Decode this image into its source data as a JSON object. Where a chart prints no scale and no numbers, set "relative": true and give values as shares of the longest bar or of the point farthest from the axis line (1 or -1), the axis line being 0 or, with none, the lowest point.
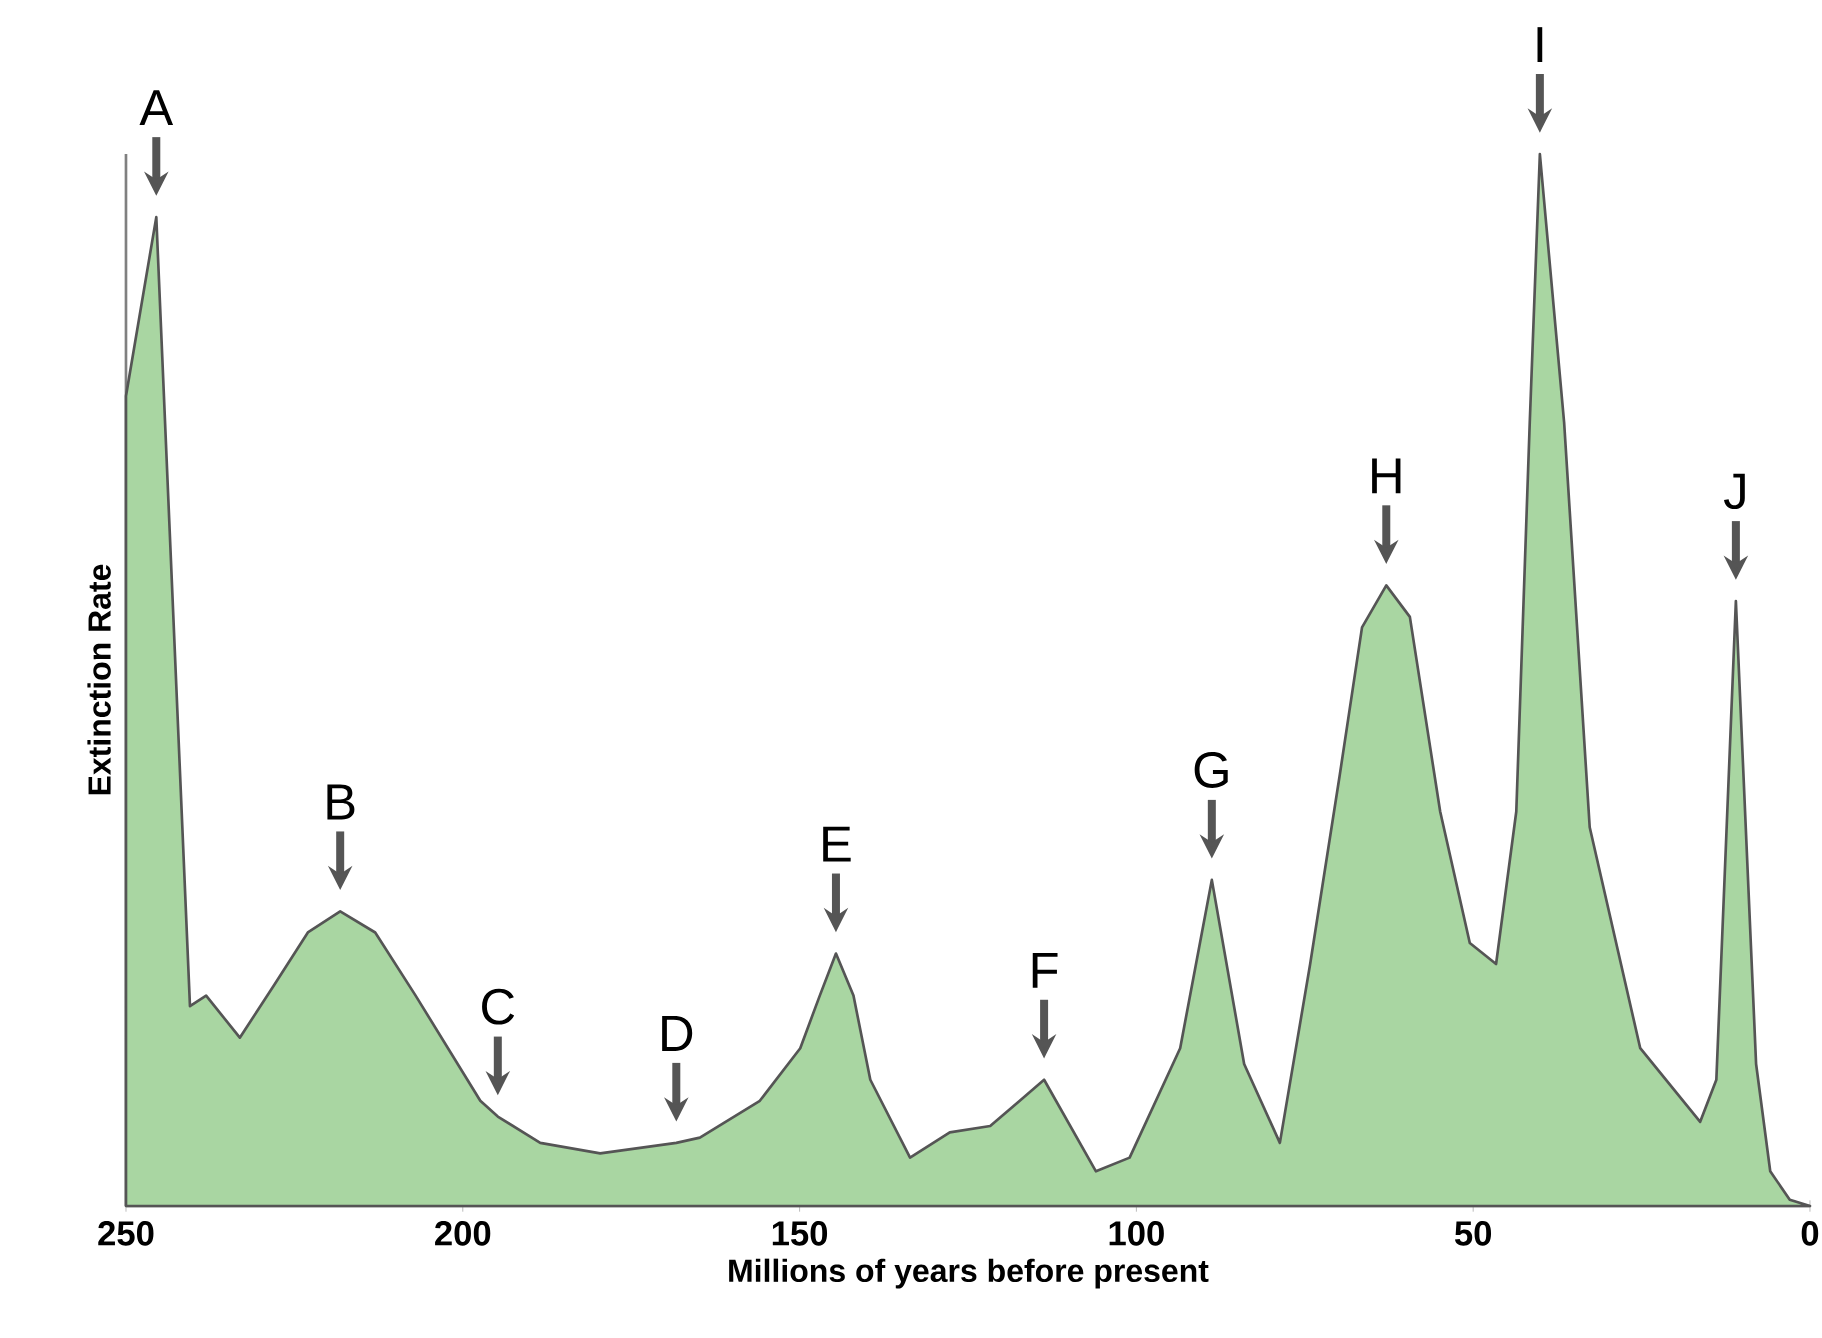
{
  "chart_data": {
    "type": "area",
    "relative": true,
    "xlabel": "Millions of years before present",
    "ylabel": "Extinction Rate",
    "color": "#a9d6a2",
    "xlim": [
      250,
      0
    ],
    "xticks": [
      250,
      200,
      150,
      100,
      50,
      0
    ],
    "x": [
      250,
      245.5,
      240.5,
      238.1,
      233.1,
      228,
      223,
      218.2,
      213,
      207,
      197.4,
      194.8,
      188.5,
      179.6,
      168.3,
      164.8,
      155.9,
      149.9,
      147,
      144.6,
      142,
      139.5,
      133.6,
      127.7,
      121.7,
      113.7,
      106,
      101,
      93.5,
      88.8,
      84,
      78.7,
      74.2,
      69.8,
      66.5,
      62.9,
      59.4,
      54.9,
      50.5,
      46.6,
      43.6,
      41.6,
      40.1,
      36.5,
      32.7,
      25.2,
      16.3,
      13.9,
      11,
      8,
      5.9,
      3,
      0
    ],
    "values": [
      0.77,
      0.94,
      0.19,
      0.2,
      0.16,
      0.21,
      0.26,
      0.28,
      0.26,
      0.2,
      0.1,
      0.085,
      0.06,
      0.05,
      0.06,
      0.065,
      0.1,
      0.15,
      0.2,
      0.24,
      0.2,
      0.12,
      0.046,
      0.07,
      0.076,
      0.12,
      0.033,
      0.046,
      0.15,
      0.31,
      0.135,
      0.06,
      0.23,
      0.41,
      0.55,
      0.59,
      0.56,
      0.375,
      0.25,
      0.23,
      0.375,
      0.745,
      1,
      0.745,
      0.36,
      0.15,
      0.08,
      0.12,
      0.575,
      0.135,
      0.033,
      0.006,
      0
    ],
    "annotations": [
      {
        "text": "A",
        "x": 245.5,
        "y": 0.94
      },
      {
        "text": "B",
        "x": 218.2,
        "y": 0.28
      },
      {
        "text": "C",
        "x": 194.8,
        "y": 0.085
      },
      {
        "text": "D",
        "x": 168.3,
        "y": 0.06
      },
      {
        "text": "E",
        "x": 144.6,
        "y": 0.24
      },
      {
        "text": "F",
        "x": 113.7,
        "y": 0.12
      },
      {
        "text": "G",
        "x": 88.8,
        "y": 0.31
      },
      {
        "text": "H",
        "x": 62.9,
        "y": 0.59
      },
      {
        "text": "I",
        "x": 40.1,
        "y": 1
      },
      {
        "text": "J",
        "x": 11,
        "y": 0.575
      }
    ]
  }
}
